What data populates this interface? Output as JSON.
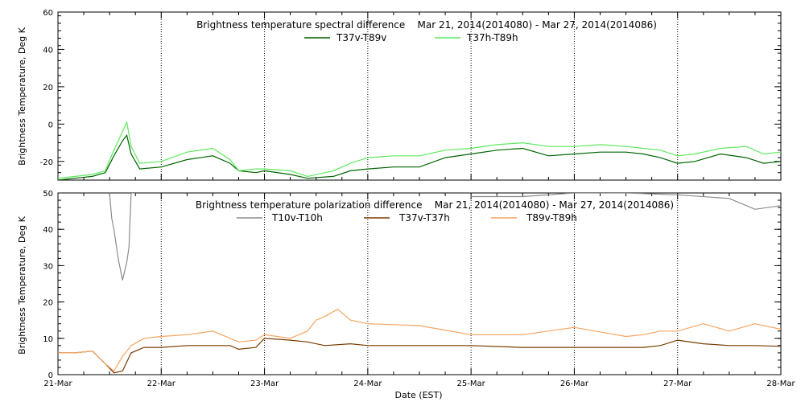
{
  "chart_data": [
    {
      "type": "line",
      "title": "Brightness temperature spectral difference    Mar 21, 2014(2014080) - Mar 27, 2014(2014086)",
      "ylabel": "Brightness Temperature, Deg K",
      "xlabel": "",
      "ylim": [
        -30,
        60
      ],
      "y_ticks": [
        "-20",
        "0",
        "20",
        "40",
        "60"
      ],
      "x_tick_labels": [
        "21-Mar",
        "22-Mar",
        "23-Mar",
        "24-Mar",
        "25-Mar",
        "26-Mar",
        "27-Mar",
        "28-Mar"
      ],
      "x_tick_labels_shown": false,
      "grid": "vertical dotted at day boundaries",
      "legend": "top-center",
      "series": [
        {
          "name": "T37v-T89v",
          "color": "#006400",
          "x": [
            "2014-03-21T00:00",
            "2014-03-21T04:00",
            "2014-03-21T08:00",
            "2014-03-21T11:00",
            "2014-03-21T13:00",
            "2014-03-21T15:00",
            "2014-03-21T16:00",
            "2014-03-21T17:00",
            "2014-03-21T19:00",
            "2014-03-22T00:00",
            "2014-03-22T06:00",
            "2014-03-22T12:00",
            "2014-03-22T16:00",
            "2014-03-22T18:00",
            "2014-03-22T22:00",
            "2014-03-23T00:00",
            "2014-03-23T06:00",
            "2014-03-23T10:00",
            "2014-03-23T16:00",
            "2014-03-23T20:00",
            "2014-03-24T00:00",
            "2014-03-24T06:00",
            "2014-03-24T12:00",
            "2014-03-24T18:00",
            "2014-03-25T00:00",
            "2014-03-25T06:00",
            "2014-03-25T12:00",
            "2014-03-25T18:00",
            "2014-03-26T00:00",
            "2014-03-26T06:00",
            "2014-03-26T12:00",
            "2014-03-26T16:00",
            "2014-03-26T20:00",
            "2014-03-27T00:00",
            "2014-03-27T04:00",
            "2014-03-27T10:00",
            "2014-03-27T16:00",
            "2014-03-27T20:00",
            "2014-03-28T00:00"
          ],
          "values": [
            -30,
            -29,
            -28,
            -26,
            -17,
            -9,
            -6,
            -16,
            -24,
            -23,
            -19,
            -17,
            -21,
            -25,
            -26,
            -25,
            -27,
            -29,
            -28,
            -25,
            -24,
            -23,
            -23,
            -18,
            -16,
            -14,
            -13,
            -17,
            -16,
            -15,
            -15,
            -16,
            -18,
            -21,
            -20,
            -16,
            -18,
            -21,
            -20
          ]
        },
        {
          "name": "T37h-T89h",
          "color": "#5ee85e",
          "x": [
            "2014-03-21T00:00",
            "2014-03-21T04:00",
            "2014-03-21T08:00",
            "2014-03-21T11:00",
            "2014-03-21T13:00",
            "2014-03-21T15:00",
            "2014-03-21T16:00",
            "2014-03-21T17:00",
            "2014-03-21T19:00",
            "2014-03-22T00:00",
            "2014-03-22T06:00",
            "2014-03-22T12:00",
            "2014-03-22T16:00",
            "2014-03-22T18:00",
            "2014-03-22T22:00",
            "2014-03-23T00:00",
            "2014-03-23T06:00",
            "2014-03-23T10:00",
            "2014-03-23T16:00",
            "2014-03-23T20:00",
            "2014-03-24T00:00",
            "2014-03-24T06:00",
            "2014-03-24T12:00",
            "2014-03-24T18:00",
            "2014-03-25T00:00",
            "2014-03-25T06:00",
            "2014-03-25T12:00",
            "2014-03-25T18:00",
            "2014-03-26T00:00",
            "2014-03-26T06:00",
            "2014-03-26T12:00",
            "2014-03-26T16:00",
            "2014-03-26T20:00",
            "2014-03-27T00:00",
            "2014-03-27T04:00",
            "2014-03-27T10:00",
            "2014-03-27T16:00",
            "2014-03-27T20:00",
            "2014-03-28T00:00"
          ],
          "values": [
            -29,
            -28,
            -27,
            -25,
            -14,
            -4,
            1,
            -12,
            -21,
            -20,
            -15,
            -13,
            -19,
            -25,
            -24,
            -24,
            -25,
            -28,
            -25,
            -21,
            -18,
            -17,
            -17,
            -14,
            -13,
            -11,
            -10,
            -12,
            -12,
            -11,
            -12,
            -13,
            -14,
            -17,
            -16,
            -13,
            -12,
            -16,
            -15
          ]
        }
      ]
    },
    {
      "type": "line",
      "title": "Brightness temperature polarization difference    Mar 21, 2014(2014080) - Mar 27, 2014(2014086)",
      "ylabel": "Brightness Temperature, Deg K",
      "xlabel": "Date (EST)",
      "ylim": [
        0,
        50
      ],
      "y_ticks": [
        "0",
        "10",
        "20",
        "30",
        "40",
        "50"
      ],
      "x_tick_labels": [
        "21-Mar",
        "22-Mar",
        "23-Mar",
        "24-Mar",
        "25-Mar",
        "26-Mar",
        "27-Mar",
        "28-Mar"
      ],
      "grid": "vertical dotted at day boundaries",
      "legend": "top-center",
      "series": [
        {
          "name": "T10v-T10h",
          "color": "#8c8c8c",
          "segments": [
            {
              "x": [
                "2014-03-21T12:00",
                "2014-03-21T12:30",
                "2014-03-21T13:00",
                "2014-03-21T14:00",
                "2014-03-21T15:00",
                "2014-03-21T16:00",
                "2014-03-21T16:30",
                "2014-03-21T17:00",
                "2014-03-21T18:00"
              ],
              "values": [
                50,
                43,
                40,
                32,
                26,
                31,
                35,
                50,
                50
              ]
            },
            {
              "x": [
                "2014-03-25T00:00",
                "2014-03-25T12:00",
                "2014-03-26T00:00",
                "2014-03-26T12:00",
                "2014-03-27T00:00",
                "2014-03-27T12:00",
                "2014-03-27T18:00",
                "2014-03-28T00:00"
              ],
              "values": [
                49,
                49,
                50,
                50,
                49.5,
                48.5,
                45.5,
                46.5
              ]
            }
          ]
        },
        {
          "name": "T37v-T37h",
          "color": "#7a3b00",
          "x": [
            "2014-03-21T00:00",
            "2014-03-21T04:00",
            "2014-03-21T08:00",
            "2014-03-21T11:00",
            "2014-03-21T13:00",
            "2014-03-21T15:00",
            "2014-03-21T17:00",
            "2014-03-21T20:00",
            "2014-03-22T00:00",
            "2014-03-22T06:00",
            "2014-03-22T12:00",
            "2014-03-22T16:00",
            "2014-03-22T18:00",
            "2014-03-22T22:00",
            "2014-03-23T00:00",
            "2014-03-23T06:00",
            "2014-03-23T10:00",
            "2014-03-23T14:00",
            "2014-03-23T20:00",
            "2014-03-24T00:00",
            "2014-03-24T12:00",
            "2014-03-25T00:00",
            "2014-03-25T12:00",
            "2014-03-26T00:00",
            "2014-03-26T12:00",
            "2014-03-26T16:00",
            "2014-03-26T20:00",
            "2014-03-27T00:00",
            "2014-03-27T06:00",
            "2014-03-27T12:00",
            "2014-03-27T18:00",
            "2014-03-28T00:00"
          ],
          "values": [
            6,
            6,
            6.5,
            3,
            0.5,
            1,
            6,
            7.5,
            7.5,
            8,
            8,
            8,
            7,
            7.5,
            10,
            9.5,
            9,
            8,
            8.5,
            8,
            8,
            8,
            7.5,
            7.5,
            7.5,
            7.5,
            8,
            9.5,
            8.5,
            8,
            8,
            7.8
          ]
        },
        {
          "name": "T89v-T89h",
          "color": "#f4a460",
          "x": [
            "2014-03-21T00:00",
            "2014-03-21T04:00",
            "2014-03-21T08:00",
            "2014-03-21T11:00",
            "2014-03-21T13:00",
            "2014-03-21T15:00",
            "2014-03-21T17:00",
            "2014-03-21T20:00",
            "2014-03-22T00:00",
            "2014-03-22T06:00",
            "2014-03-22T12:00",
            "2014-03-22T16:00",
            "2014-03-22T18:00",
            "2014-03-22T22:00",
            "2014-03-23T00:00",
            "2014-03-23T06:00",
            "2014-03-23T10:00",
            "2014-03-23T12:00",
            "2014-03-23T14:00",
            "2014-03-23T17:00",
            "2014-03-23T20:00",
            "2014-03-24T00:00",
            "2014-03-24T12:00",
            "2014-03-25T00:00",
            "2014-03-25T12:00",
            "2014-03-26T00:00",
            "2014-03-26T12:00",
            "2014-03-26T16:00",
            "2014-03-26T20:00",
            "2014-03-27T00:00",
            "2014-03-27T06:00",
            "2014-03-27T12:00",
            "2014-03-27T18:00",
            "2014-03-28T00:00"
          ],
          "values": [
            6,
            6,
            6.5,
            3,
            1,
            5,
            8,
            10,
            10.5,
            11,
            12,
            10,
            9,
            9.5,
            11,
            10,
            12,
            15,
            16,
            18,
            15,
            14,
            13.5,
            11,
            11,
            13,
            10.5,
            11,
            12,
            12,
            14,
            12,
            14,
            12.5
          ]
        }
      ]
    }
  ]
}
